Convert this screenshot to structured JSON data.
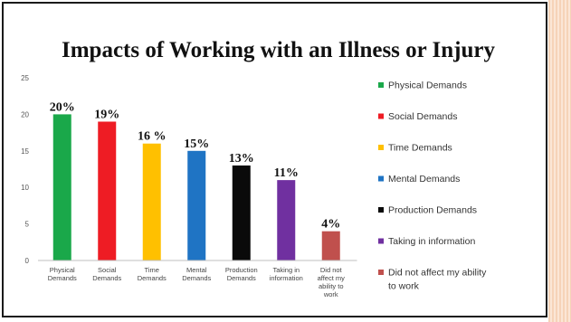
{
  "slide": {
    "title": "Impacts of Working with an Illness or Injury"
  },
  "chart_data": {
    "type": "bar",
    "title": "Impacts of Working with an Illness or Injury",
    "categories": [
      "Physical Demands",
      "Social Demands",
      "Time Demands",
      "Mental Demands",
      "Production Demands",
      "Taking in information",
      "Did not affect my ability to work"
    ],
    "values": [
      20,
      19,
      16,
      15,
      13,
      11,
      4
    ],
    "data_labels": [
      "20%",
      "19%",
      "16 %",
      "15%",
      "13%",
      "11%",
      "4%"
    ],
    "colors": [
      "#1aa84a",
      "#ee1c24",
      "#ffc000",
      "#1f74c4",
      "#0a0a0a",
      "#7030a0",
      "#c0504d"
    ],
    "ylim": [
      0,
      25
    ],
    "yticks": [
      0,
      5,
      10,
      15,
      20,
      25
    ],
    "grid": false,
    "legend": {
      "position": "right",
      "entries": [
        "Physical Demands",
        "Social Demands",
        "Time Demands",
        "Mental Demands",
        "Production Demands",
        "Taking in information",
        "Did not affect my ability to work"
      ]
    }
  }
}
